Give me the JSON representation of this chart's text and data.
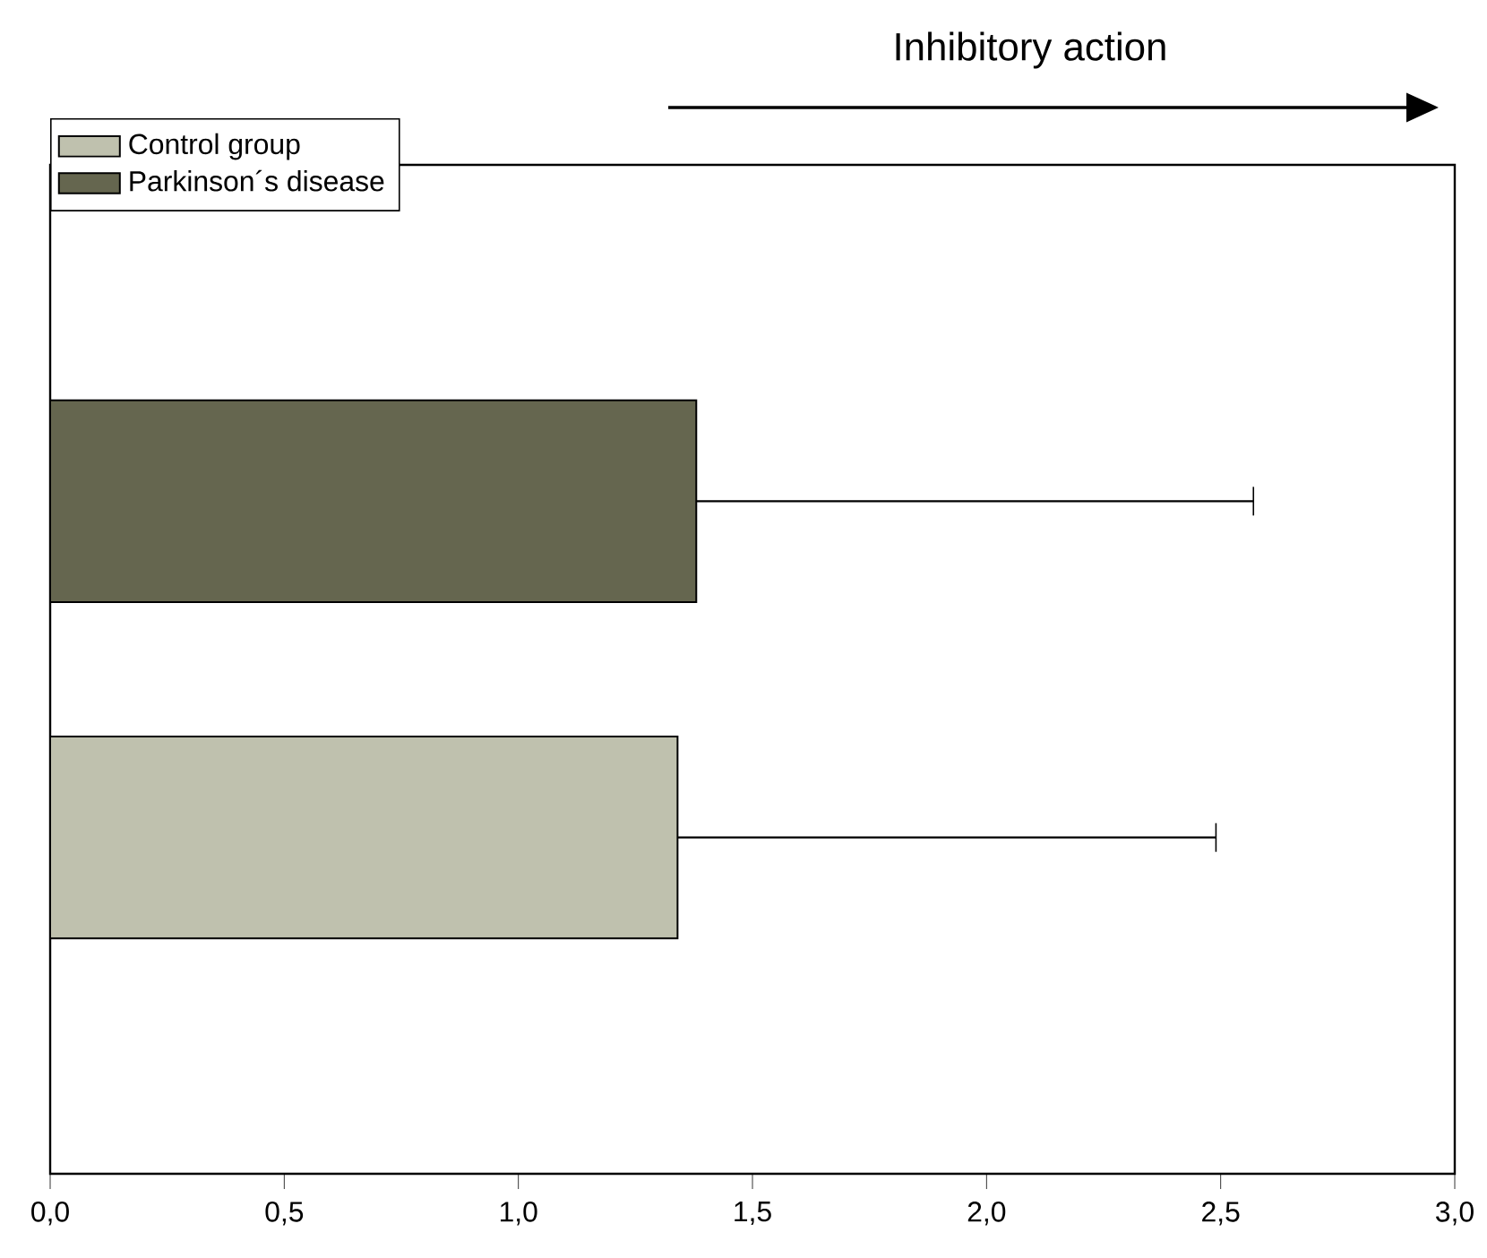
{
  "chart_data": {
    "type": "bar",
    "orientation": "horizontal",
    "categories": [
      null
    ],
    "series": [
      {
        "name": "Parkinson´s disease",
        "color": "#65664f",
        "values": [
          1.38
        ],
        "errors": [
          1.19
        ]
      },
      {
        "name": "Control group",
        "color": "#bfc1ae",
        "values": [
          1.34
        ],
        "errors": [
          1.15
        ]
      }
    ],
    "xlim": [
      0,
      3
    ],
    "xticks": [
      {
        "value": 0,
        "label": "0,0"
      },
      {
        "value": 0.5,
        "label": "0,5"
      },
      {
        "value": 1,
        "label": "1,0"
      },
      {
        "value": 1.5,
        "label": "1,5"
      },
      {
        "value": 2,
        "label": "2,0"
      },
      {
        "value": 2.5,
        "label": "2,5"
      },
      {
        "value": 3,
        "label": "3,0"
      }
    ],
    "tick_labels": "x",
    "legend": "top left",
    "annotations": [
      "Inhibitory action"
    ]
  }
}
